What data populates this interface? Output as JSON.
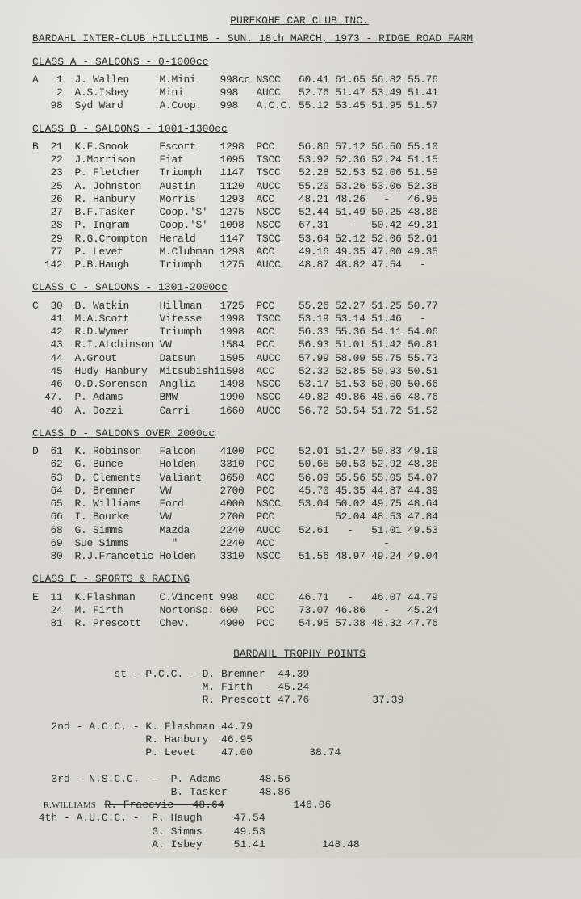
{
  "header": {
    "club": "PUREKOHE CAR CLUB INC.",
    "event": "BARDAHL INTER-CLUB HILLCLIMB - SUN. 18th MARCH, 1973 - RIDGE ROAD FARM"
  },
  "classes": [
    {
      "heading": "CLASS A - SALOONS - 0-1000cc",
      "prefix": "A",
      "rows": [
        {
          "num": "1",
          "name": "J. Wallen",
          "car": "M.Mini",
          "cc": "998cc",
          "club": "NSCC",
          "t1": "60.41",
          "t2": "61.65",
          "t3": "56.82",
          "t4": "55.76"
        },
        {
          "num": "2",
          "name": "A.S.Isbey",
          "car": "Mini",
          "cc": "998",
          "club": "AUCC",
          "t1": "52.76",
          "t2": "51.47",
          "t3": "53.49",
          "t4": "51.41"
        },
        {
          "num": "98",
          "name": "Syd Ward",
          "car": "A.Coop.",
          "cc": "998",
          "club": "A.C.C.",
          "t1": "55.12",
          "t2": "53.45",
          "t3": "51.95",
          "t4": "51.57"
        }
      ]
    },
    {
      "heading": "CLASS B - SALOONS - 1001-1300cc",
      "prefix": "B",
      "rows": [
        {
          "num": "21",
          "name": "K.F.Snook",
          "car": "Escort",
          "cc": "1298",
          "club": "PCC",
          "t1": "56.86",
          "t2": "57.12",
          "t3": "56.50",
          "t4": "55.10"
        },
        {
          "num": "22",
          "name": "J.Morrison",
          "car": "Fiat",
          "cc": "1095",
          "club": "TSCC",
          "t1": "53.92",
          "t2": "52.36",
          "t3": "52.24",
          "t4": "51.15"
        },
        {
          "num": "23",
          "name": "P. Fletcher",
          "car": "Triumph",
          "cc": "1147",
          "club": "TSCC",
          "t1": "52.28",
          "t2": "52.53",
          "t3": "52.06",
          "t4": "51.59"
        },
        {
          "num": "25",
          "name": "A. Johnston",
          "car": "Austin",
          "cc": "1120",
          "club": "AUCC",
          "t1": "55.20",
          "t2": "53.26",
          "t3": "53.06",
          "t4": "52.38"
        },
        {
          "num": "26",
          "name": "R. Hanbury",
          "car": "Morris",
          "cc": "1293",
          "club": "ACC",
          "t1": "48.21",
          "t2": "48.26",
          "t3": "  -  ",
          "t4": "46.95"
        },
        {
          "num": "27",
          "name": "B.F.Tasker",
          "car": "Coop.'S'",
          "cc": "1275",
          "club": "NSCC",
          "t1": "52.44",
          "t2": "51.49",
          "t3": "50.25",
          "t4": "48.86"
        },
        {
          "num": "28",
          "name": "P. Ingram ",
          "car": "Coop.'S'",
          "cc": "1098",
          "club": "NSCC",
          "t1": "67.31",
          "t2": "  -  ",
          "t3": "50.42",
          "t4": "49.31"
        },
        {
          "num": "29",
          "name": "R.G.Crompton",
          "car": "Herald",
          "cc": "1147",
          "club": "TSCC",
          "t1": "53.64",
          "t2": "52.12",
          "t3": "52.06",
          "t4": "52.61"
        },
        {
          "num": "77",
          "name": "P. Levet",
          "car": "M.Clubman",
          "cc": "1293",
          "club": "ACC",
          "t1": "49.16",
          "t2": "49.35",
          "t3": "47.00",
          "t4": "49.35"
        },
        {
          "num": "142",
          "name": "P.B.Haugh",
          "car": "Triumph",
          "cc": "1275",
          "club": "AUCC",
          "t1": "48.87",
          "t2": "48.82",
          "t3": "47.54",
          "t4": "  -  "
        }
      ]
    },
    {
      "heading": "CLASS C - SALOONS - 1301-2000cc",
      "prefix": "C",
      "rows": [
        {
          "num": "30",
          "name": "B. Watkin",
          "car": "Hillman",
          "cc": "1725",
          "club": "PCC",
          "t1": "55.26",
          "t2": "52.27",
          "t3": "51.25",
          "t4": "50.77"
        },
        {
          "num": "41",
          "name": "M.A.Scott",
          "car": "Vitesse",
          "cc": "1998",
          "club": "TSCC",
          "t1": "53.19",
          "t2": "53.14",
          "t3": "51.46",
          "t4": "  -  "
        },
        {
          "num": "42",
          "name": "R.D.Wymer",
          "car": "Triumph",
          "cc": "1998",
          "club": "ACC",
          "t1": "56.33",
          "t2": "55.36",
          "t3": "54.11",
          "t4": "54.06"
        },
        {
          "num": "43",
          "name": "R.I.Atchinson",
          "car": "VW",
          "cc": "1584",
          "club": "PCC",
          "t1": "56.93",
          "t2": "51.01",
          "t3": "51.42",
          "t4": "50.81"
        },
        {
          "num": "44",
          "name": "A.Grout",
          "car": "Datsun",
          "cc": "1595",
          "club": "AUCC",
          "t1": "57.99",
          "t2": "58.09",
          "t3": "55.75",
          "t4": "55.73"
        },
        {
          "num": "45",
          "name": "Hudy Hanbury",
          "car": "Mitsubishi",
          "cc": "1598",
          "club": "ACC",
          "t1": "52.32",
          "t2": "52.85",
          "t3": "50.93",
          "t4": "50.51"
        },
        {
          "num": "46",
          "name": "O.D.Sorenson",
          "car": "Anglia",
          "cc": "1498",
          "club": "NSCC",
          "t1": "53.17",
          "t2": "51.53",
          "t3": "50.00",
          "t4": "50.66"
        },
        {
          "num": "47.",
          "name": "P. Adams",
          "car": "BMW",
          "cc": "1990",
          "club": "NSCC",
          "t1": "49.82",
          "t2": "49.86",
          "t3": "48.56",
          "t4": "48.76"
        },
        {
          "num": "48",
          "name": "A. Dozzi",
          "car": "Carri",
          "cc": "1660",
          "club": "AUCC",
          "t1": "56.72",
          "t2": "53.54",
          "t3": "51.72",
          "t4": "51.52"
        }
      ]
    },
    {
      "heading": "CLASS D - SALOONS OVER 2000cc",
      "prefix": "D",
      "rows": [
        {
          "num": "61",
          "name": "K. Robinson",
          "car": "Falcon",
          "cc": "4100",
          "club": "PCC",
          "t1": "52.01",
          "t2": "51.27",
          "t3": "50.83",
          "t4": "49.19"
        },
        {
          "num": "62",
          "name": "G. Bunce",
          "car": "Holden",
          "cc": "3310",
          "club": "PCC",
          "t1": "50.65",
          "t2": "50.53",
          "t3": "52.92",
          "t4": "48.36"
        },
        {
          "num": "63",
          "name": "D. Clements",
          "car": "Valiant",
          "cc": "3650",
          "club": "ACC",
          "t1": "56.09",
          "t2": "55.56",
          "t3": "55.05",
          "t4": "54.07"
        },
        {
          "num": "64",
          "name": "D. Bremner",
          "car": "VW",
          "cc": "2700",
          "club": "PCC",
          "t1": "45.70",
          "t2": "45.35",
          "t3": "44.87",
          "t4": "44.39"
        },
        {
          "num": "65",
          "name": "R. Williams",
          "car": "Ford",
          "cc": "4000",
          "club": "NSCC",
          "t1": "53.04",
          "t2": "50.02",
          "t3": "49.75",
          "t4": "48.64"
        },
        {
          "num": "66",
          "name": "I. Bourke",
          "car": "VW",
          "cc": "2700",
          "club": "PCC",
          "t1": "     ",
          "t2": "52.04",
          "t3": "48.53",
          "t4": "47.84"
        },
        {
          "num": "68",
          "name": "G. Simms",
          "car": "Mazda",
          "cc": "2240",
          "club": "AUCC",
          "t1": "52.61",
          "t2": "  -  ",
          "t3": "51.01",
          "t4": "49.53"
        },
        {
          "num": "69",
          "name": "Sue Simms",
          "car": "  \"  ",
          "cc": "2240",
          "club": "ACC",
          "t1": "     ",
          "t2": "     ",
          "t3": "  -  ",
          "t4": "     "
        },
        {
          "num": "80",
          "name": "R.J.Francetic",
          "car": "Holden",
          "cc": "3310",
          "club": "NSCC",
          "t1": "51.56",
          "t2": "48.97",
          "t3": "49.24",
          "t4": "49.04"
        }
      ]
    },
    {
      "heading": "CLASS E - SPORTS & RACING",
      "prefix": "E",
      "rows": [
        {
          "num": "11",
          "name": "K.Flashman",
          "car": "C.Vincent",
          "cc": "998",
          "club": "ACC",
          "t1": "46.71",
          "t2": "  -  ",
          "t3": "46.07",
          "t4": "44.79"
        },
        {
          "num": "24",
          "name": "M. Firth",
          "car": "NortonSp.",
          "cc": "600",
          "club": "PCC",
          "t1": "73.07",
          "t2": "46.86",
          "t3": "  -  ",
          "t4": "45.24"
        },
        {
          "num": "81",
          "name": "R. Prescott",
          "car": "Chev.",
          "cc": "4900",
          "club": "PCC",
          "t1": "54.95",
          "t2": "57.38",
          "t3": "48.32",
          "t4": "47.76"
        }
      ]
    }
  ],
  "trophy": {
    "heading": "BARDAHL TROPHY POINTS",
    "lines": [
      "             st - P.C.C. - D. Bremner  44.39",
      "                           M. Firth  - 45.24",
      "                           R. Prescott 47.76          37.39",
      "",
      "   2nd - A.C.C. - K. Flashman 44.79",
      "                  R. Hanbury  46.95",
      "                  P. Levet    47.00         38.74",
      "",
      "   3rd - N.S.C.C.  -  P. Adams      48.56",
      "                      B. Tasker     48.86"
    ],
    "strikeline": "                      R. Fracevic   48.64",
    "handnote": "R.WILLIAMS",
    "total3": "           146.06",
    "lines2": [
      " 4th - A.U.C.C. -  P. Haugh     47.54",
      "                   G. Simms     49.53",
      "                   A. Isbey     51.41         148.48"
    ]
  }
}
